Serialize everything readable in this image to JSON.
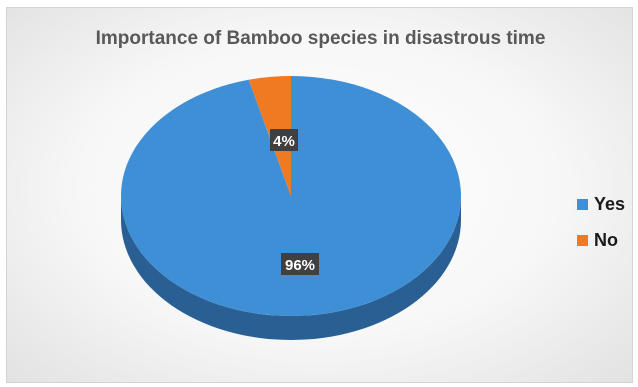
{
  "chart_data": {
    "type": "pie",
    "title": "Importance of Bamboo species in disastrous time",
    "categories": [
      "Yes",
      "No"
    ],
    "values": [
      96,
      4
    ],
    "data_labels": [
      "96%",
      "4%"
    ],
    "colors": [
      "#3f8fd6",
      "#f07a22"
    ],
    "side_colors": [
      "#2a5f94",
      "#b85515"
    ],
    "style": "3d",
    "legend_position": "right",
    "label_box_color": "#404040"
  }
}
